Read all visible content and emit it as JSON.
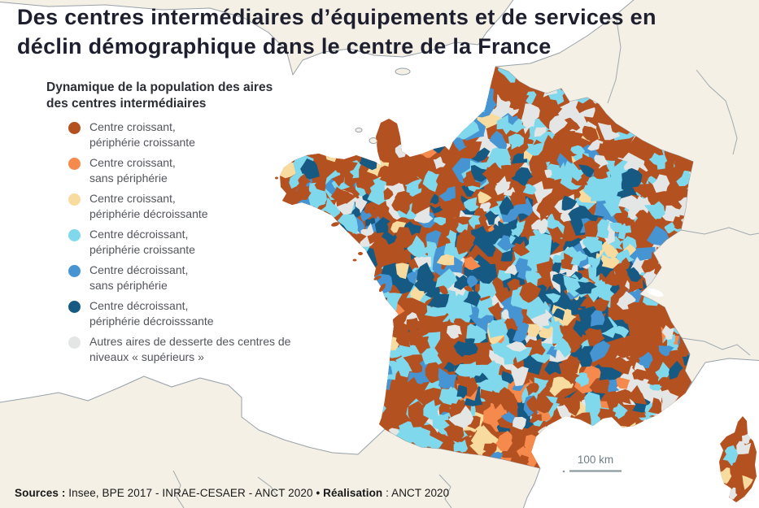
{
  "title": {
    "line1": "Des centres intermédiaires d’équipements et de services en",
    "line2": "déclin démographique dans le centre de la France"
  },
  "legend": {
    "heading_line1": "Dynamique de la population des aires",
    "heading_line2": "des centres intermédiaires",
    "items": [
      {
        "color": "#b45121",
        "line1": "Centre croissant,",
        "line2": "périphérie croissante"
      },
      {
        "color": "#f68a4d",
        "line1": "Centre croissant,",
        "line2": "sans périphérie"
      },
      {
        "color": "#f8dc9f",
        "line1": "Centre croissant,",
        "line2": "périphérie décroissante"
      },
      {
        "color": "#7fd8eb",
        "line1": "Centre décroissant,",
        "line2": "périphérie croissante"
      },
      {
        "color": "#4694d2",
        "line1": "Centre décroissant,",
        "line2": "sans périphérie"
      },
      {
        "color": "#165a84",
        "line1": "Centre décroissant,",
        "line2": "périphérie décroisssante"
      },
      {
        "color": "#e3e6e4",
        "line1": "Autres aires de desserte des centres de",
        "line2": "niveaux « supérieurs »"
      }
    ]
  },
  "scalebar": {
    "label": "100 km"
  },
  "sources": {
    "parts": [
      {
        "text": "Sources : "
      },
      {
        "text": "Insee, BPE 2017 - INRAE-CESAER - ANCT 2020 "
      },
      {
        "text": "• Réalisation"
      },
      {
        "text": " : ANCT 2020"
      }
    ]
  },
  "map": {
    "palette": {
      "rust": "#b45121",
      "orange": "#f68a4d",
      "yellow": "#f8dc9f",
      "cyan": "#7fd8eb",
      "blue": "#4694d2",
      "navy": "#165a84",
      "gray": "#e3e6e4"
    },
    "land_color": "#f4f0e6",
    "border_color": "#97a1a8",
    "sea_color": "#ffffff"
  }
}
